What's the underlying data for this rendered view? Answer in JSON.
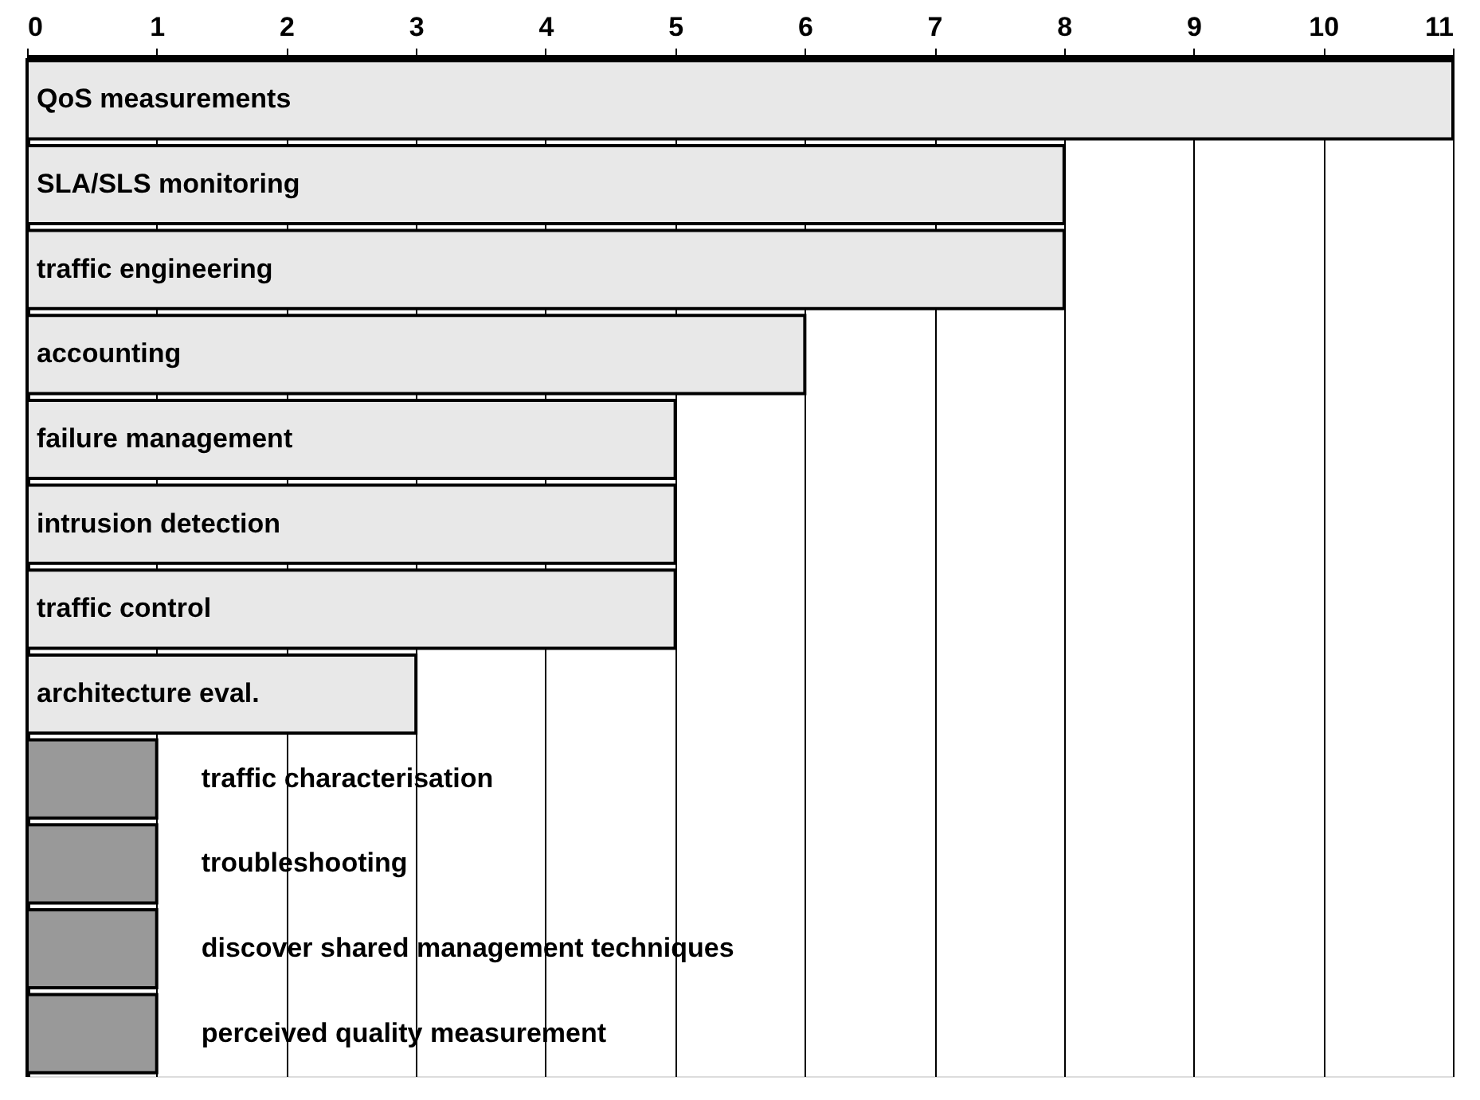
{
  "chart_data": {
    "type": "bar",
    "orientation": "horizontal",
    "categories": [
      "QoS measurements",
      "SLA/SLS monitoring",
      "traffic engineering",
      "accounting",
      "failure management",
      "intrusion detection",
      "traffic control",
      "architecture eval.",
      "traffic characterisation",
      "troubleshooting",
      "discover shared  management techniques",
      "perceived quality  measurement"
    ],
    "values": [
      11,
      8,
      8,
      6,
      5,
      5,
      5,
      3,
      1,
      1,
      1,
      1
    ],
    "colors": [
      "#e8e8e8",
      "#e8e8e8",
      "#e8e8e8",
      "#e8e8e8",
      "#e8e8e8",
      "#e8e8e8",
      "#e8e8e8",
      "#e8e8e8",
      "#999999",
      "#999999",
      "#999999",
      "#999999"
    ],
    "xlim": [
      0,
      11
    ],
    "xticks": [
      0,
      1,
      2,
      3,
      4,
      5,
      6,
      7,
      8,
      9,
      10,
      11
    ],
    "grid": "x"
  }
}
